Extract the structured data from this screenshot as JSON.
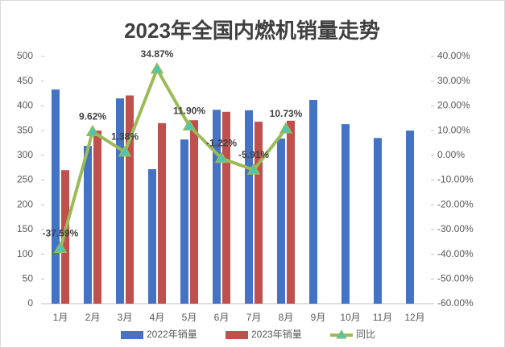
{
  "chart_data": {
    "type": "bar",
    "title": "2023年全国内燃机销量走势",
    "categories": [
      "1月",
      "2月",
      "3月",
      "4月",
      "5月",
      "6月",
      "7月",
      "8月",
      "9月",
      "10月",
      "11月",
      "12月"
    ],
    "series": [
      {
        "name": "2022年销量",
        "type": "bar",
        "color": "#4472c4",
        "values": [
          433,
          319,
          415,
          272,
          332,
          392,
          391,
          334,
          412,
          363,
          335,
          350
        ]
      },
      {
        "name": "2023年销量",
        "type": "bar",
        "color": "#c0504d",
        "values": [
          270,
          350,
          421,
          365,
          371,
          388,
          368,
          370,
          null,
          null,
          null,
          null
        ]
      },
      {
        "name": "同比",
        "type": "line",
        "axis": "y2",
        "color": "#9bbb59",
        "marker_color": "#4bc6b0",
        "values": [
          -37.59,
          9.62,
          1.38,
          34.87,
          11.9,
          -1.22,
          -5.91,
          10.73,
          null,
          null,
          null,
          null
        ],
        "value_labels": [
          "-37.59%",
          "9.62%",
          "1.38%",
          "34.87%",
          "11.90%",
          "-1.22%",
          "-5.91%",
          "10.73%",
          null,
          null,
          null,
          null
        ]
      }
    ],
    "ylim": [
      0,
      500
    ],
    "yticks": [
      0,
      50,
      100,
      150,
      200,
      250,
      300,
      350,
      400,
      450,
      500
    ],
    "y2lim": [
      -60,
      40
    ],
    "y2ticks": [
      {
        "value": -60,
        "label": "-60.00%"
      },
      {
        "value": -50,
        "label": "-50.00%"
      },
      {
        "value": -40,
        "label": "-40.00%"
      },
      {
        "value": -30,
        "label": "-30.00%"
      },
      {
        "value": -20,
        "label": "-20.00%"
      },
      {
        "value": -10,
        "label": "-10.00%"
      },
      {
        "value": 0,
        "label": "0.00%"
      },
      {
        "value": 10,
        "label": "10.00%"
      },
      {
        "value": 20,
        "label": "20.00%"
      },
      {
        "value": 30,
        "label": "30.00%"
      },
      {
        "value": 40,
        "label": "40.00%"
      }
    ],
    "grid": false,
    "legend": "bottom"
  }
}
